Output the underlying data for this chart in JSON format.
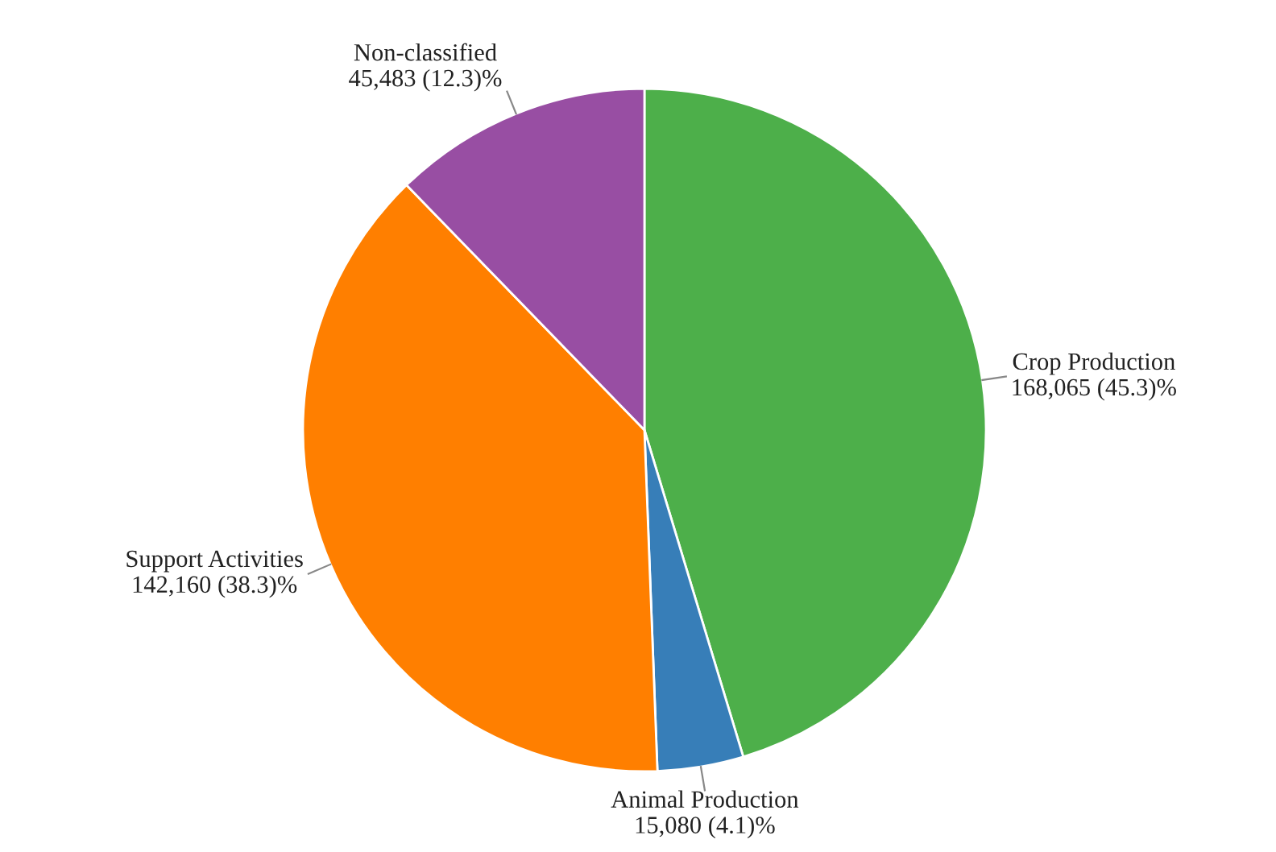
{
  "chart_data": {
    "type": "pie",
    "categories": [
      "Crop Production",
      "Animal Production",
      "Support Activities",
      "Non-classified"
    ],
    "values": [
      168065,
      15080,
      142160,
      45483
    ],
    "value_labels": [
      "168,065 (45.3)%",
      "15,080 (4.1)%",
      "142,160 (38.3)%",
      "45,483 (12.3)%"
    ],
    "colors": [
      "#4daf4a",
      "#377eb8",
      "#ff7f00",
      "#984ea3"
    ]
  }
}
